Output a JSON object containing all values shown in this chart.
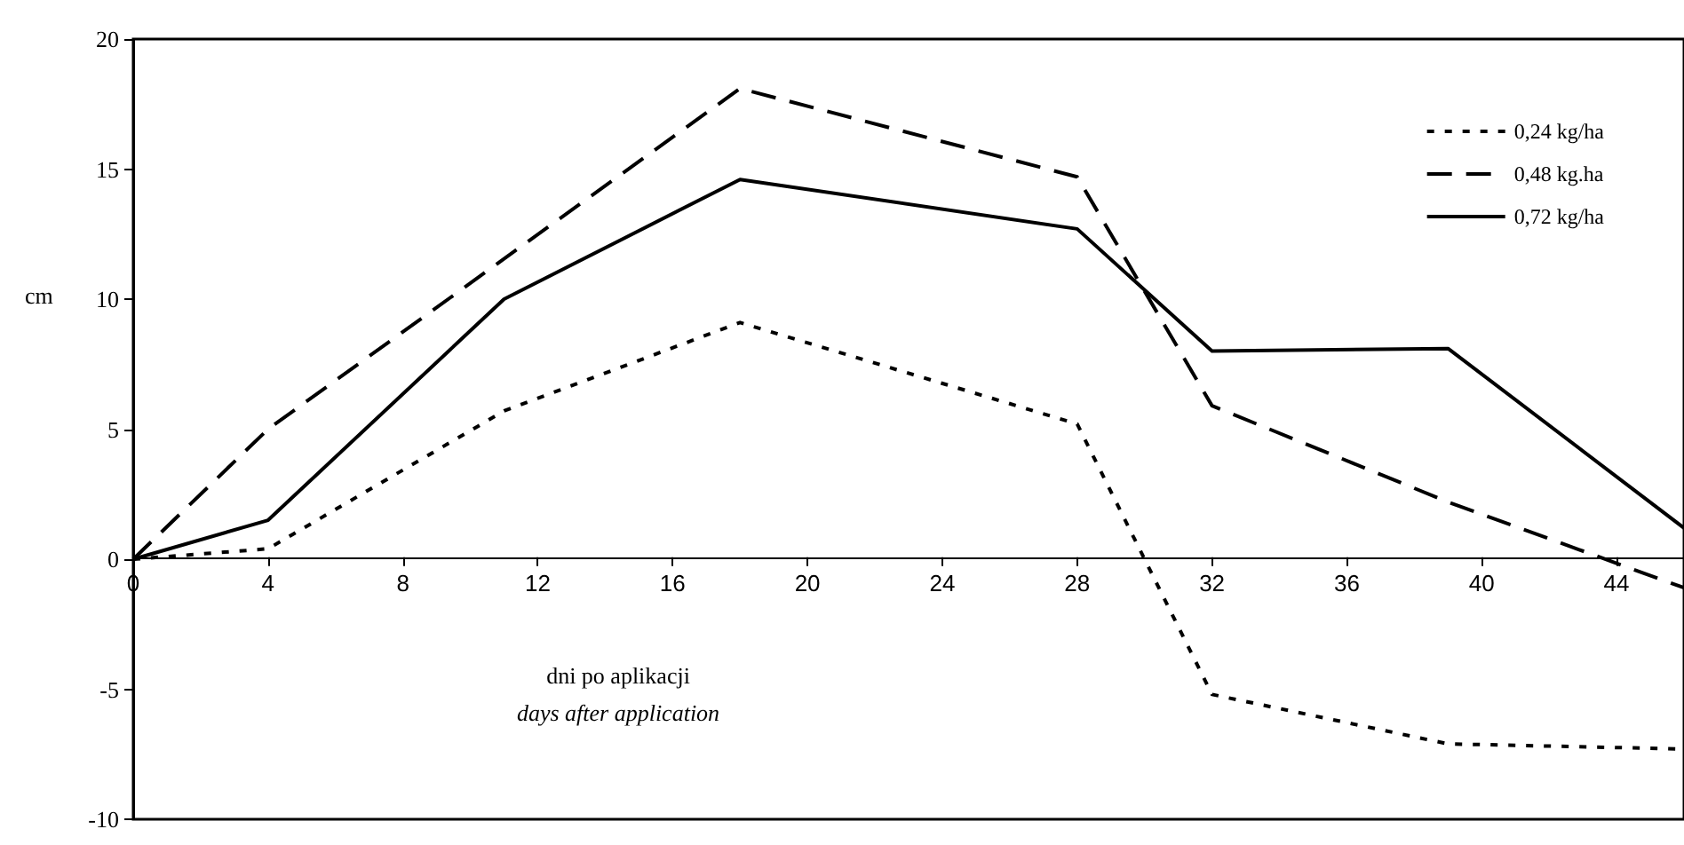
{
  "chart_data": {
    "type": "line",
    "ylabel": "cm",
    "xlabel": "dni po aplikacji\ndays after application",
    "xlim": [
      0,
      46
    ],
    "xticks": [
      0,
      4,
      8,
      12,
      16,
      20,
      24,
      28,
      32,
      36,
      40,
      44
    ],
    "ylim": [
      -10,
      20
    ],
    "yticks": [
      -10,
      -5,
      0,
      5,
      10,
      15,
      20
    ],
    "grid": false,
    "legend": "top right",
    "marker": "none",
    "series": [
      {
        "name": "0,24 kg/ha",
        "color": "#000000",
        "line_style": "dotted",
        "x": [
          0,
          4,
          11,
          18,
          28,
          32,
          39,
          46
        ],
        "values": [
          0,
          0.4,
          5.7,
          9.1,
          5.2,
          -5.2,
          -7.1,
          -7.3
        ]
      },
      {
        "name": "0,48 kg.ha",
        "color": "#000000",
        "line_style": "dashed",
        "x": [
          0,
          4,
          18,
          28,
          32,
          39,
          46
        ],
        "values": [
          0,
          5.0,
          18.1,
          14.7,
          5.9,
          2.2,
          -1.1
        ]
      },
      {
        "name": "0,72 kg/ha",
        "color": "#000000",
        "line_style": "solid",
        "x": [
          0,
          4,
          11,
          18,
          28,
          32,
          39,
          46
        ],
        "values": [
          0,
          1.5,
          10.0,
          14.6,
          12.7,
          8.0,
          8.1,
          1.2
        ]
      }
    ]
  }
}
